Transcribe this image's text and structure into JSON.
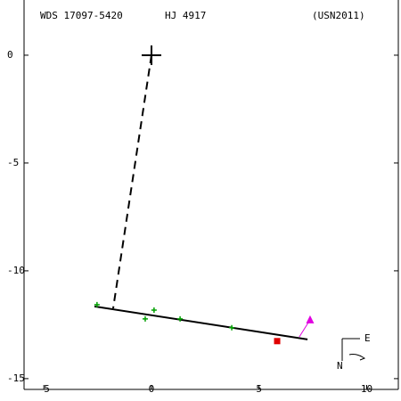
{
  "chart_data": {
    "type": "orbit",
    "identifier": "WDS 17097-5420",
    "title": "HJ 4917",
    "reference": "(USN2011)",
    "xlim": [
      -5.92,
      11.47
    ],
    "ylim": [
      -15.5,
      2.56
    ],
    "xticks": [
      -5,
      0,
      5,
      10
    ],
    "yticks": [
      0,
      -5,
      -10,
      -15
    ],
    "primary": {
      "x": 0,
      "y": 0,
      "color": "#000000"
    },
    "separation_line": {
      "x": [
        0,
        -1.78
      ],
      "y": [
        0,
        -11.74
      ],
      "color": "#000000"
    },
    "orbit": {
      "x": [
        -2.65,
        7.25
      ],
      "y": [
        -11.65,
        -13.18
      ],
      "color": "#000000"
    },
    "observations": {
      "x": [
        -2.53,
        0.12,
        -0.29,
        1.33,
        3.73
      ],
      "y": [
        -11.57,
        -11.82,
        -12.23,
        -12.23,
        -12.64
      ],
      "color": "#00a000"
    },
    "last_observation": {
      "x": 5.84,
      "y": -13.26,
      "color": "#e00000"
    },
    "motion": {
      "x": [
        6.87,
        7.37
      ],
      "y": [
        -13.06,
        -12.27
      ],
      "color": "#e000e0"
    },
    "compass": {
      "east": "E",
      "north": "N"
    }
  }
}
